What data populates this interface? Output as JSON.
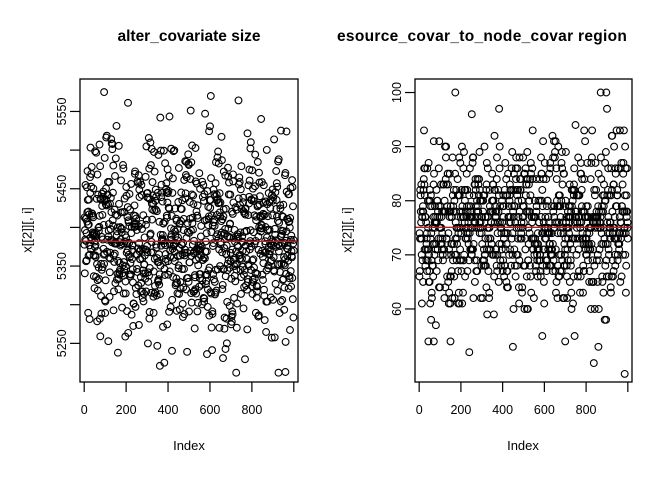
{
  "figure": {
    "background": "#FFFFFF",
    "colors": {
      "points": "#000000",
      "axis": "#000000",
      "mean_line": "#FF0000"
    }
  },
  "chart_data": [
    {
      "type": "scatter",
      "title": "alter_covariate size",
      "xlabel": "Index",
      "ylabel": "x[[2]][, i]",
      "legend": null,
      "grid": false,
      "xlim": [
        -20,
        1020
      ],
      "ylim": [
        5200,
        5592
      ],
      "xticks": {
        "values": [
          0,
          200,
          400,
          600,
          800,
          1000
        ],
        "labels": [
          "0",
          "200",
          "400",
          "600",
          "800",
          ""
        ]
      },
      "yticks": {
        "values": [
          5250,
          5300,
          5350,
          5400,
          5450,
          5500,
          5550
        ],
        "labels": [
          "5250",
          "",
          "5350",
          "",
          "5450",
          "",
          "5550"
        ]
      },
      "points_model": {
        "n": 1000,
        "x": "index 1..1000",
        "distribution": "normal",
        "mean": 5382,
        "sd": 62,
        "clamp": [
          5212,
          5575
        ],
        "discrete": false,
        "seed": 12345
      },
      "extra_points": [
        {
          "x": 95,
          "y": 5575
        },
        {
          "x": 960,
          "y": 5213
        }
      ],
      "mean_line": {
        "value": 5382,
        "color": "#FF0000"
      },
      "point_style": {
        "shape": "open-circle",
        "stroke": "#000000",
        "radius": 3.4
      }
    },
    {
      "type": "scatter",
      "title": "esource_covar_to_node_covar region",
      "title_note": "clipped at panel edges",
      "xlabel": "Index",
      "ylabel": "x[[2]][, i]",
      "legend": null,
      "grid": false,
      "xlim": [
        -20,
        1020
      ],
      "ylim": [
        46.5,
        102.5
      ],
      "xticks": {
        "values": [
          0,
          200,
          400,
          600,
          800,
          1000
        ],
        "labels": [
          "0",
          "200",
          "400",
          "600",
          "800",
          ""
        ]
      },
      "yticks": {
        "values": [
          60,
          70,
          80,
          90,
          100
        ],
        "labels": [
          "60",
          "70",
          "80",
          "90",
          "100"
        ]
      },
      "points_model": {
        "n": 1000,
        "x": "index 1..1000",
        "distribution": "normal",
        "mean": 75.5,
        "sd": 7.3,
        "clamp": [
          48,
          100
        ],
        "discrete": true,
        "seed": 98765
      },
      "extra_points": [
        {
          "x": 44,
          "y": 54
        },
        {
          "x": 70,
          "y": 54
        },
        {
          "x": 150,
          "y": 54
        },
        {
          "x": 240,
          "y": 52
        },
        {
          "x": 252,
          "y": 96
        },
        {
          "x": 590,
          "y": 55
        },
        {
          "x": 700,
          "y": 54
        },
        {
          "x": 870,
          "y": 100
        },
        {
          "x": 985,
          "y": 48
        }
      ],
      "mean_line": {
        "value": 75.1,
        "color": "#FF0000"
      },
      "point_style": {
        "shape": "open-circle",
        "stroke": "#000000",
        "radius": 3.4
      }
    }
  ]
}
